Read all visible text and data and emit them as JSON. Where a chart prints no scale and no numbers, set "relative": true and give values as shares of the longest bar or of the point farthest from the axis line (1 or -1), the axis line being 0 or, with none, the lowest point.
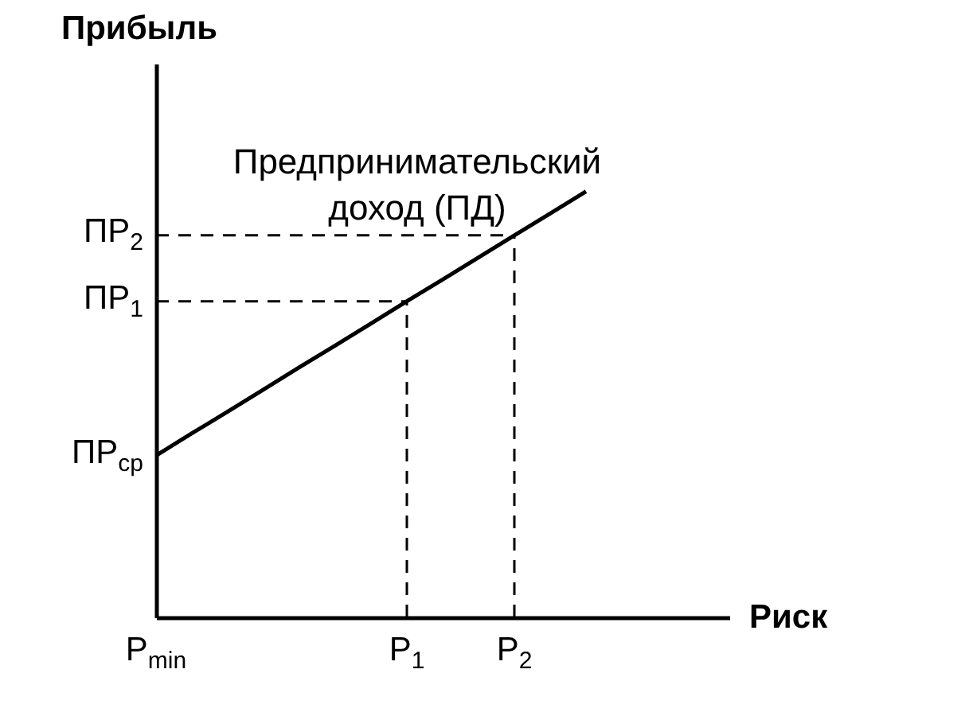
{
  "chart_data": {
    "type": "line",
    "ylabel": "Прибыль",
    "xlabel": "Риск",
    "relative": true,
    "categories": [
      "P$_{min}$",
      null,
      null,
      null,
      null,
      null,
      null,
      "P$_{1}$",
      null,
      null,
      "P$_{2}$",
      null,
      null,
      null,
      null,
      null,
      null
    ],
    "annotations": [
      "Предпринимательский доход (ПД)",
      {
        "text": "ПР$_{ср}$",
        "x": "P$_{min}$",
        "y": 0.38
      },
      {
        "text": "ПР$_{1}$",
        "x": "P$_{min}$",
        "y": 0.742
      },
      {
        "text": "ПР$_{2}$",
        "x": "P$_{min}$",
        "y": 0.897
      }
    ],
    "series": [
      {
        "color": "#000000",
        "line_style": "solid",
        "values": [
          0.38,
          0.432,
          0.483,
          0.535,
          0.587,
          0.638,
          0.69,
          0.742,
          0.793,
          0.845,
          0.897,
          0.948,
          1.0,
          null,
          null,
          null,
          null
        ]
      },
      {
        "color": "#000000",
        "line_style": "dashed",
        "x": [
          "P$_{min}$",
          "P$_{1}$"
        ],
        "values": [
          0.742,
          0.742
        ]
      },
      {
        "color": "#000000",
        "line_style": "dashed",
        "x": [
          "P$_{1}$",
          "P$_{1}$"
        ],
        "values": [
          0,
          0.742
        ]
      },
      {
        "color": "#000000",
        "line_style": "dashed",
        "x": [
          "P$_{min}$",
          "P$_{2}$"
        ],
        "values": [
          0.897,
          0.897
        ]
      },
      {
        "color": "#000000",
        "line_style": "dashed",
        "x": [
          "P$_{2}$",
          "P$_{2}$"
        ],
        "values": [
          0,
          0.897
        ]
      }
    ]
  }
}
